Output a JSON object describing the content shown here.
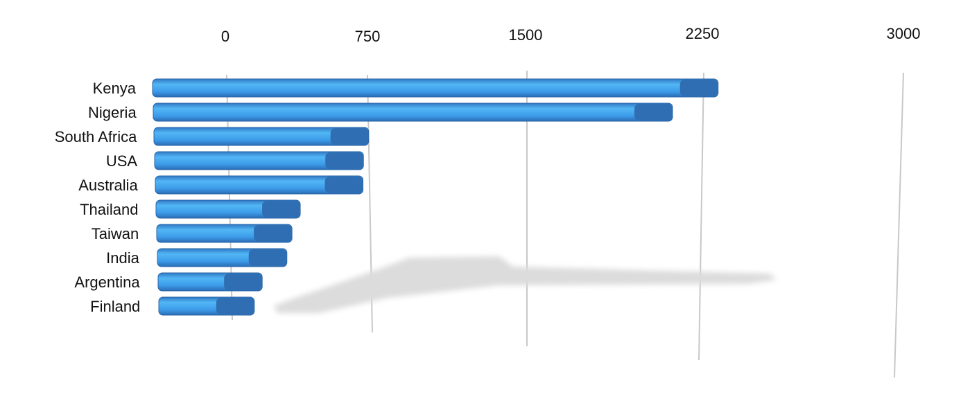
{
  "chart_data": {
    "type": "bar",
    "orientation": "horizontal",
    "style": "3d",
    "categories": [
      "Kenya",
      "Nigeria",
      "South Africa",
      "USA",
      "Australia",
      "Thailand",
      "Taiwan",
      "India",
      "Argentina",
      "Finland"
    ],
    "values": [
      2305,
      2120,
      750,
      720,
      715,
      377,
      330,
      300,
      165,
      120
    ],
    "xlim": [
      0,
      3000
    ],
    "xticks": [
      "0",
      "750",
      "1500",
      "2250",
      "3000"
    ],
    "grid": true,
    "legend": "none",
    "colors": {
      "bar": "#3d9be9",
      "bar_end": "#2f6eb2",
      "grid": "#c8c8c8",
      "shadow": "#dcdcdc"
    }
  }
}
